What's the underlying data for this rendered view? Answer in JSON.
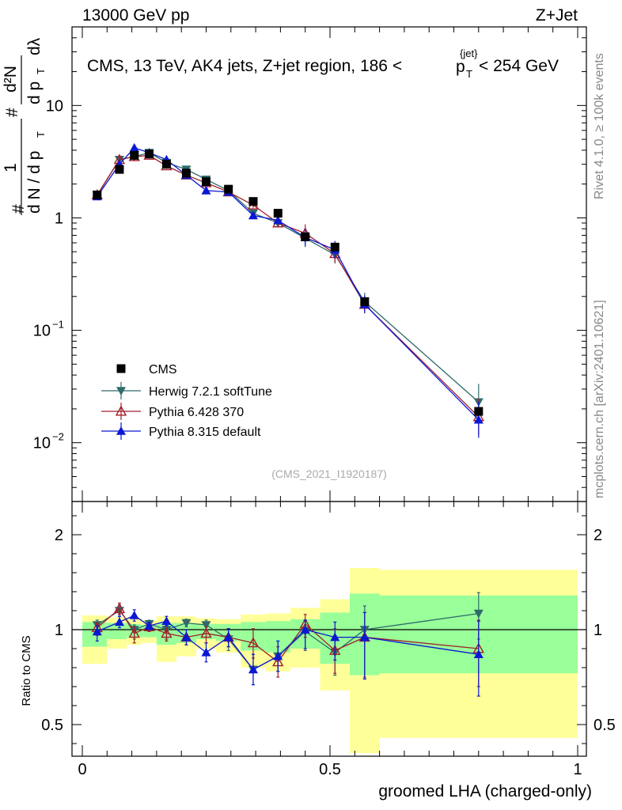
{
  "header": {
    "energy_label": "13000 GeV pp",
    "process_label": "Z+Jet",
    "main_title": "CMS, 13 TeV, AK4 jets, Z+jet region, 186 <",
    "pt_symbol": "p",
    "pt_subscript": "T",
    "pt_superscript": "{jet}",
    "main_title_tail": "< 254 GeV",
    "analysis_id": "(CMS_2021_I1920187)",
    "side_rivet": "Rivet 4.1.0, ≥ 100k events",
    "side_mcplots": "mcplots.cern.ch [arXiv:2401.10621]"
  },
  "y_axis_main": {
    "frac_numerator": "1",
    "frac_denominator": "d N / d p",
    "frac_denominator_sub": "T",
    "hash_left": "#",
    "hash_mid": "#",
    "deriv_numerator": "d²N",
    "deriv_denominator": "d p",
    "deriv_denominator_sub": "T",
    "deriv_lambda": "dλ"
  },
  "y_axis_ratio": {
    "label": "Ratio to CMS"
  },
  "x_axis": {
    "label": "groomed LHA (charged-only)"
  },
  "legend": [
    {
      "name": "CMS",
      "color": "#000000",
      "marker": "square"
    },
    {
      "name": "Herwig 7.2.1 softTune",
      "color": "#2f6b6b",
      "marker": "triangle-down"
    },
    {
      "name": "Pythia 6.428 370",
      "color": "#a01f2a",
      "marker": "triangle-up-open"
    },
    {
      "name": "Pythia 8.315 default",
      "color": "#0a18d4",
      "marker": "triangle-up"
    }
  ],
  "colors": {
    "band_outer": "#ffff99",
    "band_inner": "#99ff99",
    "herwig": "#2f6b6b",
    "pythia6": "#a01f2a",
    "pythia8": "#0a18d4"
  },
  "chart_data": [
    {
      "type": "scatter",
      "title": "CMS, 13 TeV, AK4 jets, Z+jet region, 186 < pT jet < 254 GeV",
      "xlabel": "groomed LHA (charged-only)",
      "ylabel": "1/N dN/dpT dλ",
      "yscale": "log",
      "xlim": [
        0,
        1
      ],
      "ylim": [
        0.003,
        50
      ],
      "y_ticks": [
        {
          "value": 0.01,
          "label": "10",
          "exp": "−2"
        },
        {
          "value": 0.1,
          "label": "10",
          "exp": "−1"
        },
        {
          "value": 1,
          "label": "1",
          "exp": ""
        },
        {
          "value": 10,
          "label": "10",
          "exp": ""
        }
      ],
      "x": [
        0.03,
        0.075,
        0.105,
        0.135,
        0.17,
        0.21,
        0.25,
        0.295,
        0.345,
        0.395,
        0.45,
        0.51,
        0.57,
        0.8
      ],
      "series": [
        {
          "name": "CMS",
          "values": [
            1.6,
            2.7,
            3.6,
            3.7,
            3.0,
            2.5,
            2.1,
            1.8,
            1.4,
            1.1,
            0.68,
            0.55,
            0.18,
            0.019
          ]
        },
        {
          "name": "Herwig 7.2.1 softTune",
          "values": [
            1.6,
            3.3,
            3.5,
            3.8,
            3.1,
            2.7,
            2.2,
            1.75,
            1.1,
            0.9,
            0.66,
            0.47,
            0.18,
            0.023
          ]
        },
        {
          "name": "Pythia 6.428 370",
          "values": [
            1.6,
            3.3,
            3.5,
            3.6,
            2.9,
            2.4,
            2.05,
            1.7,
            1.3,
            0.9,
            0.73,
            0.48,
            0.17,
            0.017
          ]
        },
        {
          "name": "Pythia 8.315 default",
          "values": [
            1.55,
            3.0,
            4.2,
            3.8,
            3.3,
            2.4,
            1.75,
            1.7,
            1.05,
            0.95,
            0.67,
            0.52,
            0.17,
            0.016
          ]
        }
      ]
    },
    {
      "type": "scatter",
      "ylabel": "Ratio to CMS",
      "xlabel": "groomed LHA (charged-only)",
      "xlim": [
        0,
        1
      ],
      "ylim": [
        0.35,
        2.25
      ],
      "x_ticks": [
        {
          "value": 0,
          "label": "0"
        },
        {
          "value": 0.5,
          "label": "0.5"
        },
        {
          "value": 1,
          "label": "1"
        }
      ],
      "y_ticks": [
        {
          "value": 0.5,
          "label": "0.5"
        },
        {
          "value": 1,
          "label": "1"
        },
        {
          "value": 2,
          "label": "2"
        }
      ],
      "bins": [
        0,
        0.05,
        0.09,
        0.12,
        0.15,
        0.19,
        0.23,
        0.27,
        0.32,
        0.37,
        0.42,
        0.48,
        0.54,
        0.6,
        1.0
      ],
      "band_outer_lo": [
        0.82,
        0.9,
        0.92,
        0.93,
        0.83,
        0.86,
        0.9,
        0.88,
        0.8,
        0.78,
        0.8,
        0.68,
        0.35,
        0.43
      ],
      "band_outer_hi": [
        1.15,
        1.13,
        1.12,
        1.1,
        1.14,
        1.14,
        1.12,
        1.11,
        1.16,
        1.17,
        1.23,
        1.32,
        1.65,
        1.63
      ],
      "band_inner_lo": [
        0.91,
        0.95,
        0.96,
        0.96,
        0.92,
        0.93,
        0.95,
        0.94,
        0.89,
        0.88,
        0.9,
        0.82,
        0.76,
        0.77
      ],
      "band_inner_hi": [
        1.08,
        1.07,
        1.06,
        1.05,
        1.07,
        1.07,
        1.06,
        1.06,
        1.08,
        1.09,
        1.11,
        1.18,
        1.38,
        1.36
      ],
      "series": [
        {
          "name": "Herwig 7.2.1 softTune",
          "values": [
            1.05,
            1.2,
            1.0,
            1.06,
            1.0,
            1.07,
            1.05,
            0.95,
            0.79,
            0.86,
            0.99,
            0.88,
            1.0,
            1.17
          ],
          "errors": [
            0.05,
            0.06,
            0.05,
            0.04,
            0.05,
            0.04,
            0.05,
            0.06,
            0.08,
            0.08,
            0.1,
            0.12,
            0.25,
            0.22
          ]
        },
        {
          "name": "Pythia 6.428 370",
          "values": [
            1.02,
            1.22,
            0.98,
            1.03,
            0.98,
            0.96,
            0.98,
            0.96,
            0.93,
            0.83,
            1.06,
            0.89,
            0.96,
            0.9
          ],
          "errors": [
            0.05,
            0.06,
            0.05,
            0.04,
            0.04,
            0.04,
            0.05,
            0.05,
            0.08,
            0.08,
            0.1,
            0.12,
            0.22,
            0.2
          ]
        },
        {
          "name": "Pythia 8.315 default",
          "values": [
            0.99,
            1.08,
            1.15,
            1.04,
            1.09,
            0.96,
            0.88,
            0.96,
            0.79,
            0.86,
            1.0,
            0.96,
            0.96,
            0.87
          ],
          "errors": [
            0.05,
            0.06,
            0.06,
            0.04,
            0.05,
            0.04,
            0.05,
            0.05,
            0.08,
            0.08,
            0.1,
            0.12,
            0.22,
            0.22
          ]
        }
      ]
    }
  ]
}
